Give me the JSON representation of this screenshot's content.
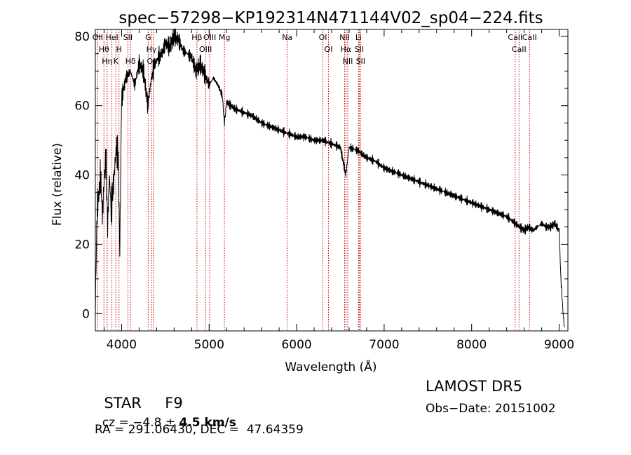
{
  "chart_data": {
    "type": "line",
    "title": "spec−57298−KP192314N471144V02_sp04−224.fits",
    "xlabel": "Wavelength (Å)",
    "ylabel": "Flux (relative)",
    "xlim": [
      3700,
      9100
    ],
    "ylim": [
      -5,
      82
    ],
    "x_ticks": [
      4000,
      5000,
      6000,
      7000,
      8000,
      9000
    ],
    "y_ticks": [
      0,
      20,
      40,
      60,
      80
    ],
    "grid": false,
    "line_color": "#000000",
    "marker_color": "#cc0000",
    "series": [
      {
        "x": [
          3700,
          3720,
          3740,
          3760,
          3780,
          3800,
          3820,
          3840,
          3860,
          3880,
          3900,
          3920,
          3940,
          3960,
          3980,
          4000,
          4050,
          4100,
          4150,
          4200,
          4250,
          4300,
          4340,
          4380,
          4420,
          4460,
          4500,
          4550,
          4600,
          4650,
          4700,
          4750,
          4800,
          4850,
          4900,
          4950,
          5000,
          5050,
          5100,
          5150,
          5175,
          5200,
          5250,
          5300,
          5400,
          5500,
          5600,
          5700,
          5800,
          5900,
          6000,
          6100,
          6200,
          6300,
          6400,
          6500,
          6562,
          6600,
          6700,
          6800,
          6900,
          7000,
          7100,
          7200,
          7300,
          7400,
          7500,
          7600,
          7700,
          7800,
          7900,
          8000,
          8100,
          8200,
          8300,
          8400,
          8500,
          8550,
          8600,
          8650,
          8700,
          8750,
          8800,
          8850,
          8900,
          8950,
          9000,
          9020,
          9040,
          9060
        ],
        "y": [
          2,
          30,
          35,
          40,
          28,
          38,
          45,
          25,
          40,
          30,
          35,
          42,
          48,
          45,
          18,
          62,
          68,
          70,
          66,
          72,
          70,
          60,
          68,
          72,
          74,
          75,
          78,
          77,
          80,
          79,
          76,
          75,
          74,
          70,
          72,
          69,
          66,
          68,
          66,
          63,
          55,
          61,
          60,
          59,
          58,
          57,
          55,
          54,
          53,
          52,
          51,
          51,
          50,
          50,
          49,
          48,
          40,
          48,
          47,
          45,
          44,
          42,
          41,
          40,
          39,
          38,
          37,
          36,
          35,
          34,
          33,
          32,
          31,
          30,
          29,
          28,
          26,
          25,
          24,
          25,
          24,
          25,
          26,
          25,
          25,
          26,
          24,
          10,
          2,
          -4
        ]
      }
    ],
    "lines": [
      {
        "wl": 3727,
        "label": "OII"
      },
      {
        "wl": 3798,
        "label": "Hθ"
      },
      {
        "wl": 3835,
        "label": "Hη"
      },
      {
        "wl": 3889,
        "label": "HeI"
      },
      {
        "wl": 3934,
        "label": "K"
      },
      {
        "wl": 3970,
        "label": "H"
      },
      {
        "wl": 4072,
        "label": "SII"
      },
      {
        "wl": 4102,
        "label": "Hδ"
      },
      {
        "wl": 4304,
        "label": "G"
      },
      {
        "wl": 4341,
        "label": "Hγ"
      },
      {
        "wl": 4363,
        "label": "OIII"
      },
      {
        "wl": 4861,
        "label": "Hβ"
      },
      {
        "wl": 4959,
        "label": "OIII"
      },
      {
        "wl": 5007,
        "label": "OIII"
      },
      {
        "wl": 5175,
        "label": "Mg"
      },
      {
        "wl": 5893,
        "label": "Na"
      },
      {
        "wl": 6300,
        "label": "OI"
      },
      {
        "wl": 6364,
        "label": "OI"
      },
      {
        "wl": 6548,
        "label": "NII"
      },
      {
        "wl": 6563,
        "label": "Hα"
      },
      {
        "wl": 6584,
        "label": "NII"
      },
      {
        "wl": 6708,
        "label": "Li"
      },
      {
        "wl": 6716,
        "label": "SII"
      },
      {
        "wl": 6731,
        "label": "SII"
      },
      {
        "wl": 8498,
        "label": "CaII"
      },
      {
        "wl": 8542,
        "label": "CaII"
      },
      {
        "wl": 8662,
        "label": "CaII"
      }
    ]
  },
  "info": {
    "class": "STAR",
    "subclass": "F9",
    "survey": "LAMOST DR5",
    "cz_label": "cz = ",
    "cz_value": "−4.8",
    "pm": " ± ",
    "cz_err": "4.5",
    "cz_unit": " km/s",
    "obs_date": "Obs−Date: 20151002",
    "coords": "RA = 291.06430, DEC =  47.64359"
  }
}
